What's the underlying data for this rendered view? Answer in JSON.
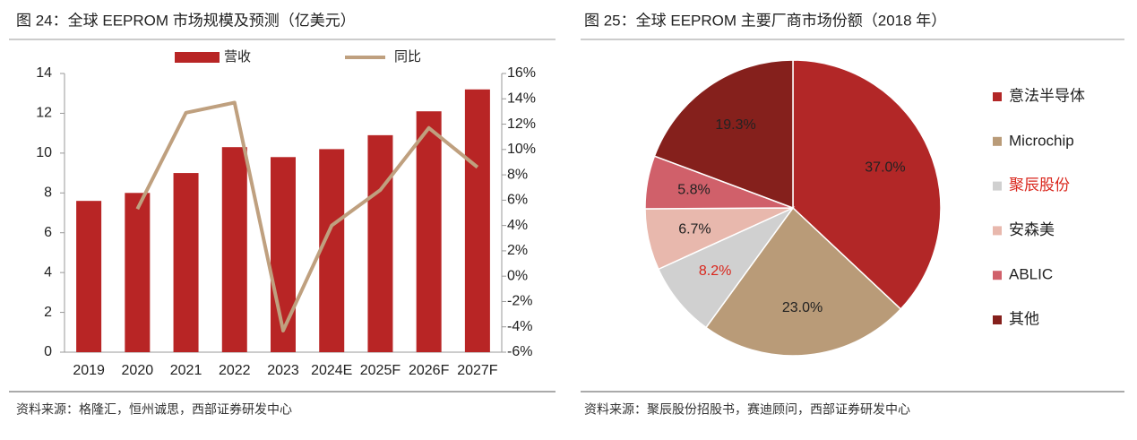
{
  "chart_data": [
    {
      "type": "bar",
      "title": "图 24：全球 EEPROM 市场规模及预测（亿美元）",
      "source": "资料来源：格隆汇，恒州诚思，西部证券研发中心",
      "categories": [
        "2019",
        "2020",
        "2021",
        "2022",
        "2023",
        "2024E",
        "2025F",
        "2026F",
        "2027F"
      ],
      "series": [
        {
          "name": "营收",
          "color": "#b82525",
          "type": "bar",
          "values": [
            7.6,
            8.0,
            9.0,
            10.3,
            9.8,
            10.2,
            10.9,
            12.1,
            13.2
          ]
        },
        {
          "name": "同比",
          "color": "#bfa07f",
          "type": "line",
          "axis": "y2",
          "values": [
            null,
            5.3,
            12.9,
            13.7,
            -4.3,
            4.0,
            6.8,
            11.7,
            8.6
          ]
        }
      ],
      "ylim": [
        0,
        14
      ],
      "yticks": [
        0,
        2,
        4,
        6,
        8,
        10,
        12,
        14
      ],
      "y2lim": [
        -6,
        16
      ],
      "y2ticks": [
        {
          "value": -6,
          "label": "-6%"
        },
        {
          "value": -4,
          "label": "-4%"
        },
        {
          "value": -2,
          "label": "-2%"
        },
        {
          "value": 0,
          "label": "0%"
        },
        {
          "value": 2,
          "label": "2%"
        },
        {
          "value": 4,
          "label": "4%"
        },
        {
          "value": 6,
          "label": "6%"
        },
        {
          "value": 8,
          "label": "8%"
        },
        {
          "value": 10,
          "label": "10%"
        },
        {
          "value": 12,
          "label": "12%"
        },
        {
          "value": 14,
          "label": "14%"
        },
        {
          "value": 16,
          "label": "16%"
        }
      ],
      "legend": "top"
    },
    {
      "type": "pie",
      "title": "图 25：全球 EEPROM 主要厂商市场份额（2018 年）",
      "source": "资料来源：聚辰股份招股书，赛迪顾问，西部证券研发中心",
      "categories": [
        "意法半导体",
        "Microchip",
        "聚辰股份",
        "安森美",
        "ABLIC",
        "其他"
      ],
      "values": [
        37.0,
        23.0,
        8.2,
        6.7,
        5.8,
        19.3
      ],
      "value_labels": [
        "37.0%",
        "23.0%",
        "8.2%",
        "6.7%",
        "5.8%",
        "19.3%"
      ],
      "colors": [
        "#b22727",
        "#b99b78",
        "#d0d0d0",
        "#e8b8ad",
        "#d0606a",
        "#85201c"
      ],
      "highlight_index": 2,
      "highlight_color": "#d9261c",
      "legend": "right"
    }
  ]
}
